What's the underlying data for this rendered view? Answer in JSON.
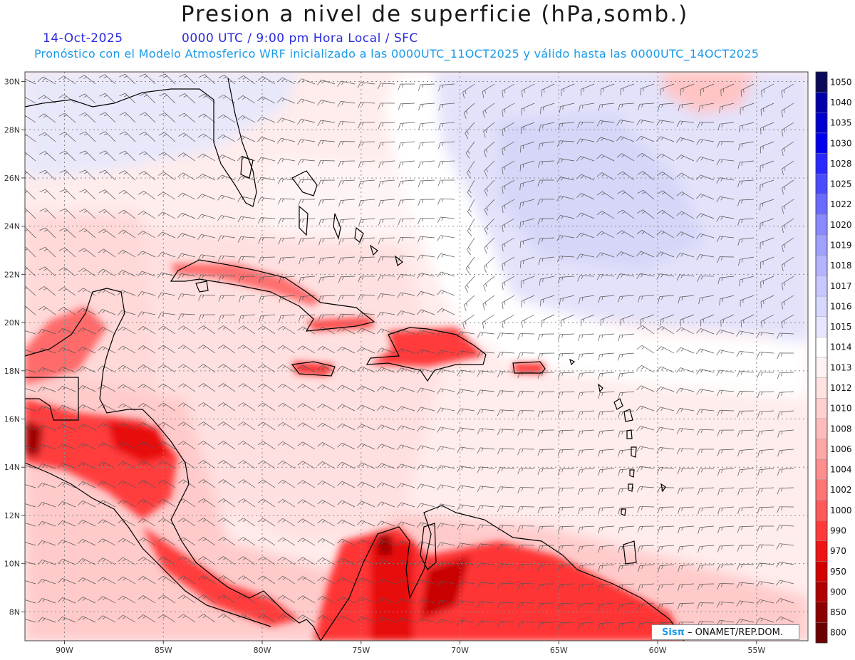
{
  "header": {
    "title": "Presion a nivel de superficie (hPa,somb.)",
    "date": "14-Oct-2025",
    "time_label": "0000 UTC / 9:00 pm Hora Local / SFC",
    "forecast_note": "Pronóstico con el Modelo Atmosferico WRF inicializado a las 0000UTC_11OCT2025 y válido hasta las  0000UTC_14OCT2025"
  },
  "map": {
    "lon_labels": [
      "90W",
      "85W",
      "80W",
      "75W",
      "70W",
      "65W",
      "60W",
      "55W"
    ],
    "lat_labels": [
      "30N",
      "28N",
      "26N",
      "24N",
      "22N",
      "20N",
      "18N",
      "16N",
      "14N",
      "12N",
      "10N",
      "8N"
    ],
    "extent": {
      "lon": [
        -92,
        -52.4
      ],
      "lat": [
        6.8,
        30.4
      ]
    }
  },
  "colorbar": {
    "levels": [
      "1050",
      "1040",
      "1035",
      "1030",
      "1028",
      "1025",
      "1022",
      "1020",
      "1019",
      "1018",
      "1017",
      "1016",
      "1015",
      "1014",
      "1013",
      "1012",
      "1010",
      "1008",
      "1006",
      "1004",
      "1002",
      "1000",
      "990",
      "970",
      "950",
      "900",
      "850",
      "800"
    ],
    "colors": [
      "#0a0a5a",
      "#0000a8",
      "#0000d0",
      "#0000f0",
      "#2828ff",
      "#4a4aff",
      "#6a6aff",
      "#8a8aff",
      "#a0a0ff",
      "#b4b4ff",
      "#c8c8ff",
      "#d8d8ff",
      "#e6e6ff",
      "#ffffff",
      "#fff2f2",
      "#ffe2e2",
      "#ffd0d0",
      "#ffbcbc",
      "#ffa6a6",
      "#ff8e8e",
      "#ff7474",
      "#ff5858",
      "#ff3a3a",
      "#ee1414",
      "#d40000",
      "#b00000",
      "#8c0000",
      "#6a0000"
    ]
  },
  "credit": {
    "brand": "Sisπ",
    "org": " – ONAMET/REP.DOM."
  }
}
